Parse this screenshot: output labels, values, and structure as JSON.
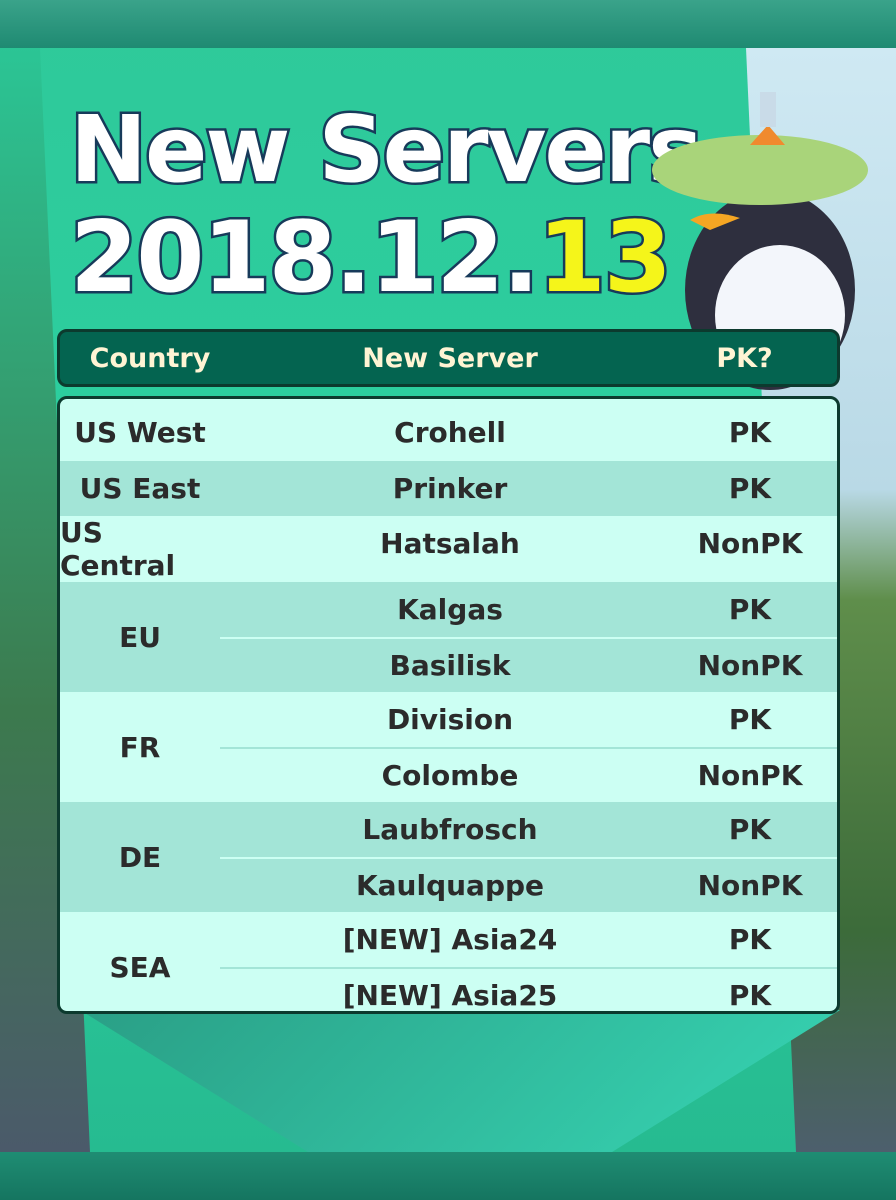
{
  "title": {
    "line1": "New Servers",
    "date_prefix": "2018.12.",
    "date_highlight": "13"
  },
  "colors": {
    "header_bg": "#046450",
    "row_light": "#ccfff3",
    "row_dark": "#a3e5d7",
    "highlight": "#f5f51a"
  },
  "table": {
    "headers": [
      "Country",
      "New Server",
      "PK?"
    ],
    "groups": [
      {
        "country": "US West",
        "servers": [
          {
            "name": "Crohell",
            "pk": "PK"
          }
        ]
      },
      {
        "country": "US East",
        "servers": [
          {
            "name": "Prinker",
            "pk": "PK"
          }
        ]
      },
      {
        "country": "US Central",
        "servers": [
          {
            "name": "Hatsalah",
            "pk": "NonPK"
          }
        ]
      },
      {
        "country": "EU",
        "servers": [
          {
            "name": "Kalgas",
            "pk": "PK"
          },
          {
            "name": "Basilisk",
            "pk": "NonPK"
          }
        ]
      },
      {
        "country": "FR",
        "servers": [
          {
            "name": "Division",
            "pk": "PK"
          },
          {
            "name": "Colombe",
            "pk": "NonPK"
          }
        ]
      },
      {
        "country": "DE",
        "servers": [
          {
            "name": "Laubfrosch",
            "pk": "PK"
          },
          {
            "name": "Kaulquappe",
            "pk": "NonPK"
          }
        ]
      },
      {
        "country": "SEA",
        "servers": [
          {
            "name": "[NEW] Asia24",
            "pk": "PK"
          },
          {
            "name": "[NEW] Asia25",
            "pk": "PK"
          }
        ]
      }
    ]
  }
}
